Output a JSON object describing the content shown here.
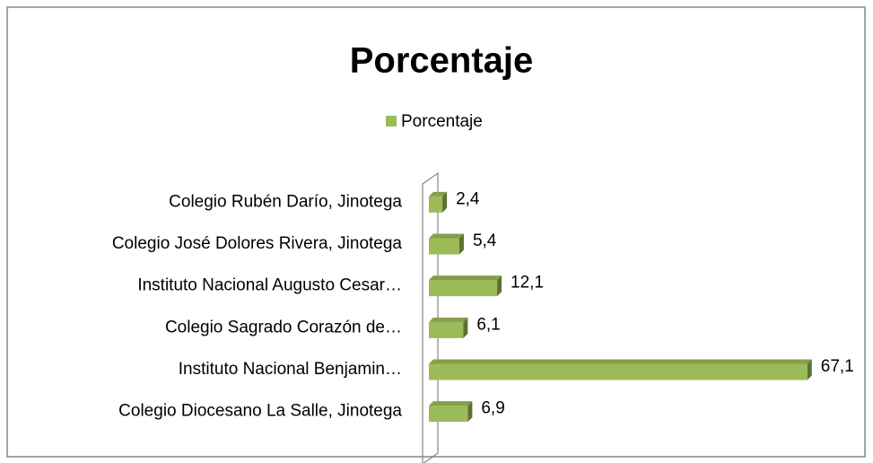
{
  "chart_data": {
    "type": "bar",
    "orientation": "horizontal",
    "title": "Porcentaje",
    "categories": [
      "Colegio Rubén Darío, Jinotega",
      "Colegio José Dolores Rivera, Jinotega",
      "Instituto Nacional Augusto Cesar…",
      "Colegio Sagrado Corazón de…",
      "Instituto Nacional Benjamin…",
      "Colegio Diocesano La Salle, Jinotega"
    ],
    "series": [
      {
        "name": "Porcentaje",
        "color": "#9bbb59",
        "values": [
          2.4,
          5.4,
          12.1,
          6.1,
          67.1,
          6.9
        ],
        "value_labels": [
          "2,4",
          "5,4",
          "12,1",
          "6,1",
          "67,1",
          "6,9"
        ]
      }
    ],
    "xlim": [
      0,
      70
    ],
    "legend": "top"
  }
}
